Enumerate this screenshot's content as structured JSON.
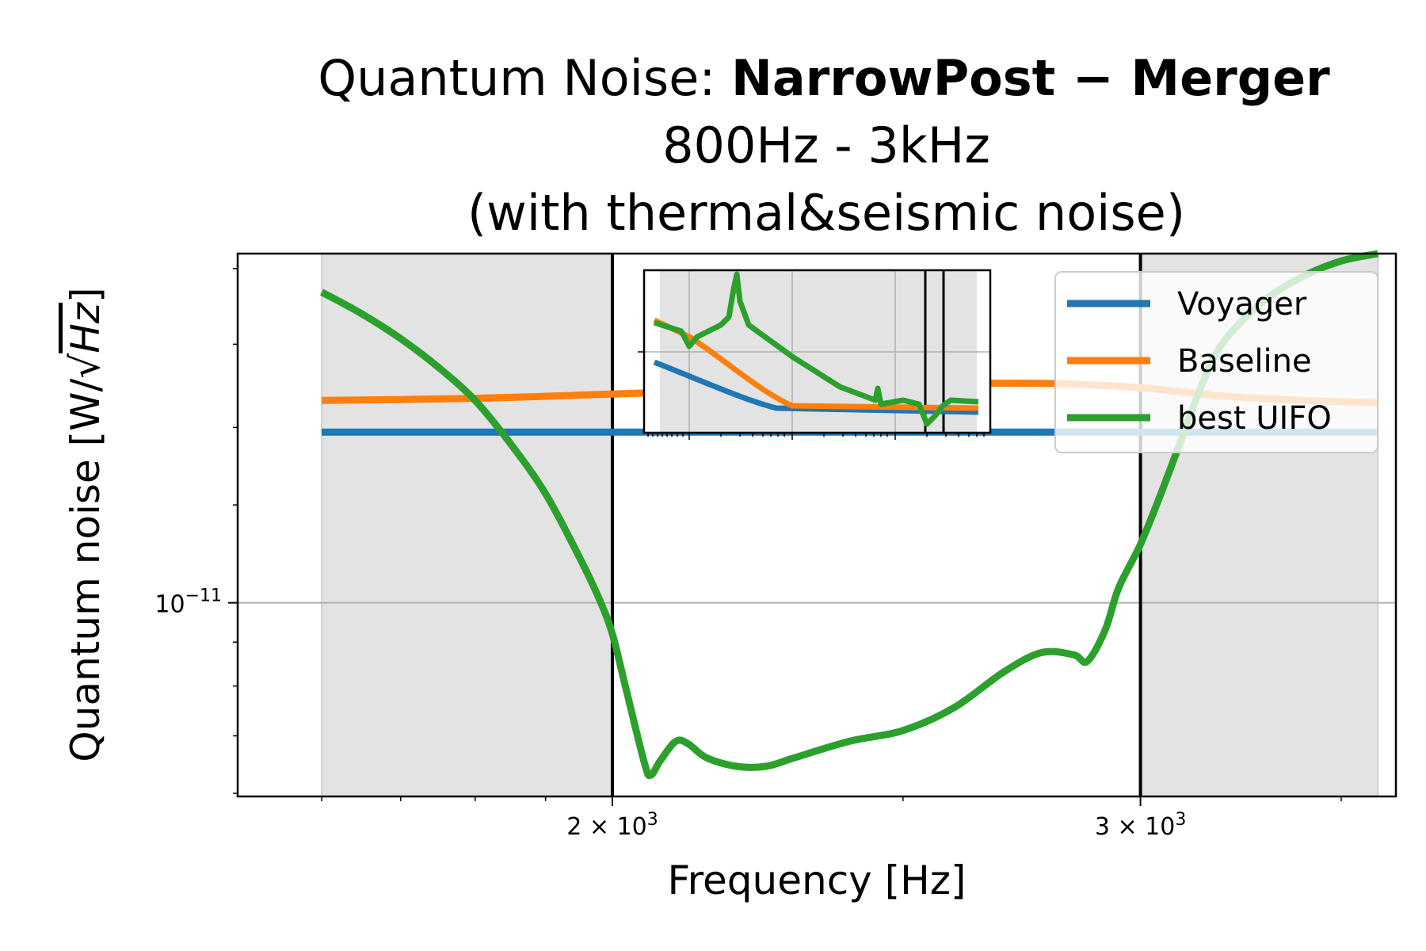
{
  "chart_data": {
    "type": "line",
    "title": {
      "line1_prefix": "Quantum Noise: ",
      "line1_bold": "NarrowPost − Merger",
      "line2": "800Hz - 3kHz",
      "line3": "(with thermal&seismic noise)"
    },
    "xlabel": "Frequency [Hz]",
    "ylabel": {
      "prefix": "Quantum noise [W/",
      "radical": "√",
      "root": "Hz",
      "suffix": "]"
    },
    "x_scale": "log",
    "y_scale": "log",
    "xlim": [
      1500,
      3650
    ],
    "ylim": [
      5.95e-12,
      2.55e-11
    ],
    "x_ticks": [
      {
        "value": 2000,
        "base": "2 × 10",
        "exp": "3"
      },
      {
        "value": 3000,
        "base": "3 × 10",
        "exp": "3"
      }
    ],
    "y_ticks": [
      {
        "value": 1e-11,
        "base": "10",
        "exp": "−11"
      }
    ],
    "grid": true,
    "shaded_regions": [
      [
        1600,
        2000
      ],
      [
        3000,
        3600
      ]
    ],
    "vertical_lines": [
      2000,
      3000
    ],
    "legend_position": "upper right",
    "colors": {
      "Voyager": "#1f77b4",
      "Baseline": "#ff7f0e",
      "best UIFO": "#2ca02c"
    },
    "series": [
      {
        "name": "Voyager",
        "x": [
          1600,
          3600
        ],
        "y": [
          1.58e-11,
          1.58e-11
        ]
      },
      {
        "name": "Baseline",
        "x": [
          1600,
          1800,
          2000,
          2200,
          2400,
          2600,
          2800,
          3000,
          3200,
          3400,
          3600
        ],
        "y": [
          1.72e-11,
          1.73e-11,
          1.75e-11,
          1.77e-11,
          1.79e-11,
          1.8e-11,
          1.8e-11,
          1.78e-11,
          1.74e-11,
          1.72e-11,
          1.71e-11
        ]
      },
      {
        "name": "best UIFO",
        "x": [
          1600,
          1650,
          1700,
          1750,
          1800,
          1850,
          1900,
          1950,
          1980,
          2000,
          2020,
          2050,
          2060,
          2075,
          2100,
          2120,
          2150,
          2200,
          2250,
          2300,
          2400,
          2500,
          2600,
          2700,
          2780,
          2850,
          2880,
          2920,
          2950,
          3000,
          3050,
          3100,
          3150,
          3200,
          3300,
          3400,
          3500,
          3600
        ],
        "y": [
          2.3e-11,
          2.17e-11,
          2.03e-11,
          1.88e-11,
          1.72e-11,
          1.53e-11,
          1.34e-11,
          1.13e-11,
          1.01e-11,
          9.2e-12,
          8e-12,
          6.5e-12,
          6.3e-12,
          6.55e-12,
          6.9e-12,
          6.85e-12,
          6.6e-12,
          6.45e-12,
          6.45e-12,
          6.6e-12,
          6.9e-12,
          7.1e-12,
          7.55e-12,
          8.3e-12,
          8.75e-12,
          8.7e-12,
          8.55e-12,
          9.3e-12,
          1.04e-11,
          1.17e-11,
          1.35e-11,
          1.57e-11,
          1.82e-11,
          2.02e-11,
          2.25e-11,
          2.4e-11,
          2.5e-11,
          2.55e-11
        ]
      }
    ]
  },
  "inset": {
    "series_colors": [
      "#1f77b4",
      "#ff7f0e",
      "#2ca02c"
    ]
  }
}
